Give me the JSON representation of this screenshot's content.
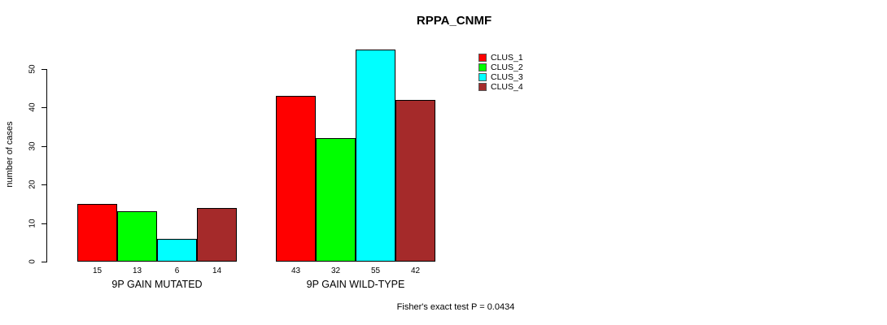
{
  "chart_data": {
    "type": "bar",
    "title": "RPPA_CNMF",
    "xlabel": "",
    "ylabel": "number of cases",
    "ylim": [
      0,
      55
    ],
    "yticks": [
      0,
      10,
      20,
      30,
      40,
      50
    ],
    "categories": [
      "9P GAIN MUTATED",
      "9P GAIN WILD-TYPE"
    ],
    "series": [
      {
        "name": "CLUS_1",
        "color": "#ff0000",
        "values": [
          15,
          43
        ]
      },
      {
        "name": "CLUS_2",
        "color": "#00ff00",
        "values": [
          13,
          32
        ]
      },
      {
        "name": "CLUS_3",
        "color": "#00ffff",
        "values": [
          6,
          55
        ]
      },
      {
        "name": "CLUS_4",
        "color": "#a52a2a",
        "values": [
          14,
          42
        ]
      }
    ],
    "bar_value_labels": [
      [
        "15",
        "13",
        "6",
        "14"
      ],
      [
        "43",
        "32",
        "55",
        "42"
      ]
    ],
    "legend": {
      "position": "top-right",
      "entries": [
        "CLUS_1",
        "CLUS_2",
        "CLUS_3",
        "CLUS_4"
      ]
    },
    "grid": false,
    "annotation": "Fisher's exact test P = 0.0434"
  }
}
